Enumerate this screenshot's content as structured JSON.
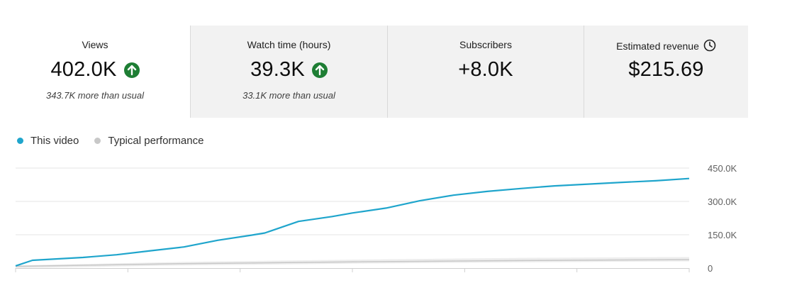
{
  "metrics": [
    {
      "label": "Views",
      "value": "402.0K",
      "trend": "up",
      "sub": "343.7K more than usual"
    },
    {
      "label": "Watch time (hours)",
      "value": "39.3K",
      "trend": "up",
      "sub": "33.1K more than usual"
    },
    {
      "label": "Subscribers",
      "value": "+8.0K"
    },
    {
      "label": "Estimated revenue",
      "value": "$215.69",
      "icon": "clock-icon"
    }
  ],
  "colors": {
    "this_video": "#1fa5cc",
    "typical": "#c8c8c8",
    "typical_band": "#ededed",
    "trend_up": "#1e7e34"
  },
  "legend": {
    "this_video": "This video",
    "typical": "Typical performance"
  },
  "chart_data": {
    "type": "line",
    "ylim": [
      0,
      450000
    ],
    "y_tick_values": [
      0,
      150000,
      300000,
      450000
    ],
    "y_tick_labels": [
      "0",
      "150.0K",
      "300.0K",
      "450.0K"
    ],
    "x_divisions": 6,
    "series": [
      {
        "name": "This video",
        "x": [
          0,
          0.025,
          0.1,
          0.15,
          0.2,
          0.25,
          0.3,
          0.35,
          0.37,
          0.42,
          0.47,
          0.5,
          0.55,
          0.6,
          0.65,
          0.7,
          0.75,
          0.8,
          0.85,
          0.9,
          0.95,
          1.0
        ],
        "y": [
          10000,
          35000,
          48000,
          60000,
          78000,
          95000,
          125000,
          148000,
          158000,
          210000,
          232000,
          248000,
          270000,
          303000,
          328000,
          345000,
          358000,
          370000,
          378000,
          386000,
          393000,
          403000
        ]
      },
      {
        "name": "Typical performance",
        "x": [
          0,
          0.25,
          0.5,
          0.75,
          1.0
        ],
        "y": [
          8000,
          20000,
          28000,
          34000,
          38000
        ],
        "range_low": [
          0,
          12000,
          20000,
          26000,
          30000
        ],
        "range_high": [
          12000,
          28000,
          38000,
          46000,
          50000
        ]
      }
    ]
  }
}
